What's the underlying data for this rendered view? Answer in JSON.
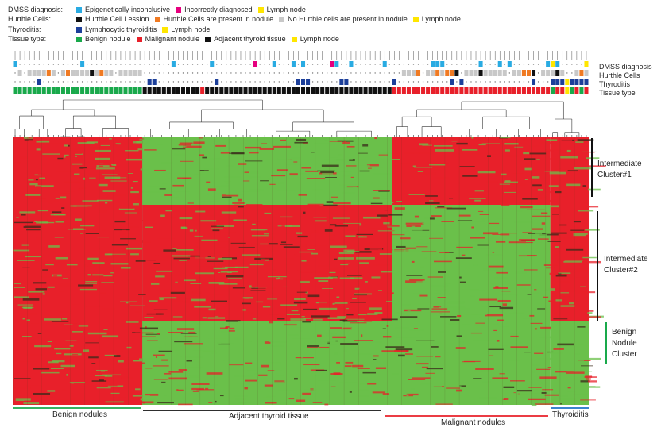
{
  "legend": [
    {
      "title": "DMSS diagnosis:",
      "items": [
        {
          "label": "Epigenetically inconclusive",
          "color": "#29abe2"
        },
        {
          "label": "Incorrectly diagnosed",
          "color": "#e6007e"
        },
        {
          "label": "Lymph node",
          "color": "#ffe600"
        }
      ]
    },
    {
      "title": "Hurthle Cells:",
      "items": [
        {
          "label": "Hurthle Cell Lession",
          "color": "#111111"
        },
        {
          "label": "Hurthle Cells are present in nodule",
          "color": "#f07a22"
        },
        {
          "label": "No Hurthle cells are present in nodule",
          "color": "#c8c8c8"
        },
        {
          "label": "Lymph node",
          "color": "#ffe600"
        }
      ]
    },
    {
      "title": "Thyroditis:",
      "items": [
        {
          "label": "Lymphocytic thyroiditis",
          "color": "#1c3f9a"
        },
        {
          "label": "Lymph node",
          "color": "#ffe600"
        }
      ]
    },
    {
      "title": "Tissue type:",
      "items": [
        {
          "label": "Benign nodule",
          "color": "#19a94b"
        },
        {
          "label": "Malignant nodule",
          "color": "#e8202a"
        },
        {
          "label": "Adjacent thyroid tissue",
          "color": "#111111"
        },
        {
          "label": "Lymph node",
          "color": "#ffe600"
        }
      ]
    }
  ],
  "tracks": [
    "DMSS diagnosis",
    "Hurthle Cells",
    "Thyroditis",
    "Tissue type"
  ],
  "clusters": [
    {
      "line1": "Intermediate",
      "line2": "Cluster#1"
    },
    {
      "line1": "Intermediate",
      "line2": "Cluster#2"
    },
    {
      "line1": "Benign",
      "line2": "Nodule",
      "line3": "Cluster"
    }
  ],
  "groups": [
    "Benign nodules",
    "Adjacent thyroid tissue",
    "Malignant nodules",
    "Thyroiditis"
  ],
  "colors": {
    "red": "#e8202a",
    "green": "#6ac04a",
    "dark": "#3a2a1a",
    "blue_bar": "#1f73c8"
  }
}
